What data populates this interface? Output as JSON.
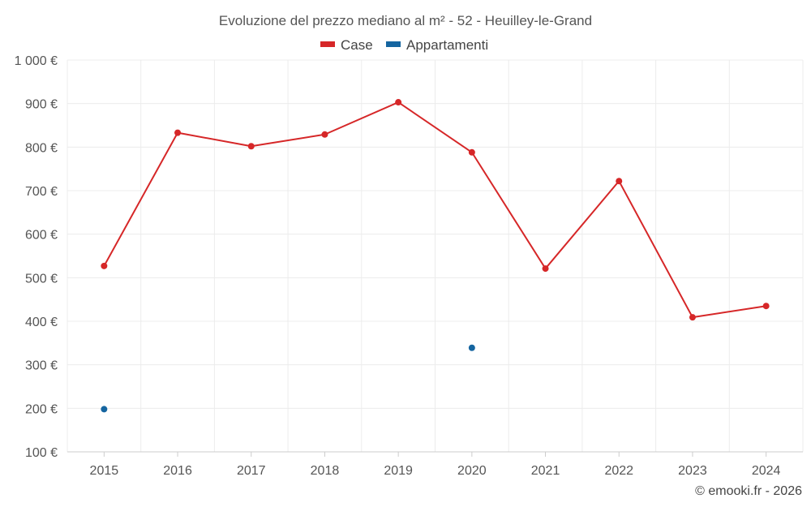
{
  "chart_data": {
    "type": "line",
    "title": "Evoluzione del prezzo mediano al m² - 52 - Heuilley-le-Grand",
    "categories": [
      "2015",
      "2016",
      "2017",
      "2018",
      "2019",
      "2020",
      "2021",
      "2022",
      "2023",
      "2024"
    ],
    "series": [
      {
        "name": "Case",
        "color": "#d62728",
        "values": [
          527,
          833,
          802,
          829,
          903,
          788,
          521,
          722,
          409,
          435
        ]
      },
      {
        "name": "Appartamenti",
        "color": "#1565a0",
        "values": [
          198,
          null,
          null,
          null,
          null,
          339,
          null,
          null,
          null,
          null
        ]
      }
    ],
    "ylim": [
      100,
      1000
    ],
    "yticks": [
      100,
      200,
      300,
      400,
      500,
      600,
      700,
      800,
      900,
      1000
    ],
    "ytick_labels": [
      "100 €",
      "200 €",
      "300 €",
      "400 €",
      "500 €",
      "600 €",
      "700 €",
      "800 €",
      "900 €",
      "1 000 €"
    ],
    "grid": true,
    "legend_position": "top-center",
    "xlabel": "",
    "ylabel": ""
  },
  "credit": "© emooki.fr - 2026"
}
